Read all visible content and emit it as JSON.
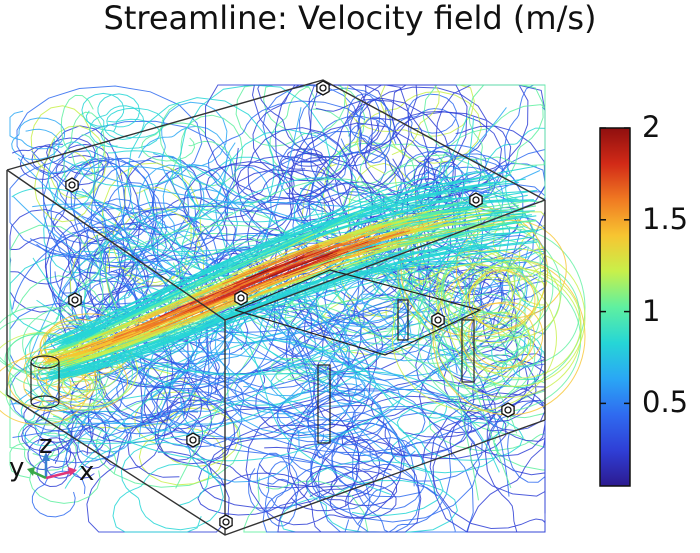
{
  "title": "Streamline: Velocity field (m/s)",
  "colorbar": {
    "min": 0.05,
    "max": 2.0,
    "ticks": [
      "2",
      "1.5",
      "1",
      "0.5"
    ],
    "tick_values": [
      2.0,
      1.5,
      1.0,
      0.5
    ],
    "colormap": [
      "#2c1a8f",
      "#2f3fd6",
      "#2f6bf0",
      "#2aa7f5",
      "#26d6d6",
      "#5ff0a0",
      "#c8f04a",
      "#f7c531",
      "#f07a22",
      "#d22a17",
      "#8f0f0f"
    ]
  },
  "axes_triad": {
    "x_label": "x",
    "y_label": "y",
    "z_label": "z",
    "x_color": "#e0357a",
    "y_color": "#3aa84a",
    "z_color": "#3a7fd1"
  },
  "colors": {
    "box_edge": "#333333",
    "low_speed": "#2f3fd6",
    "high_speed": "#b81414"
  }
}
